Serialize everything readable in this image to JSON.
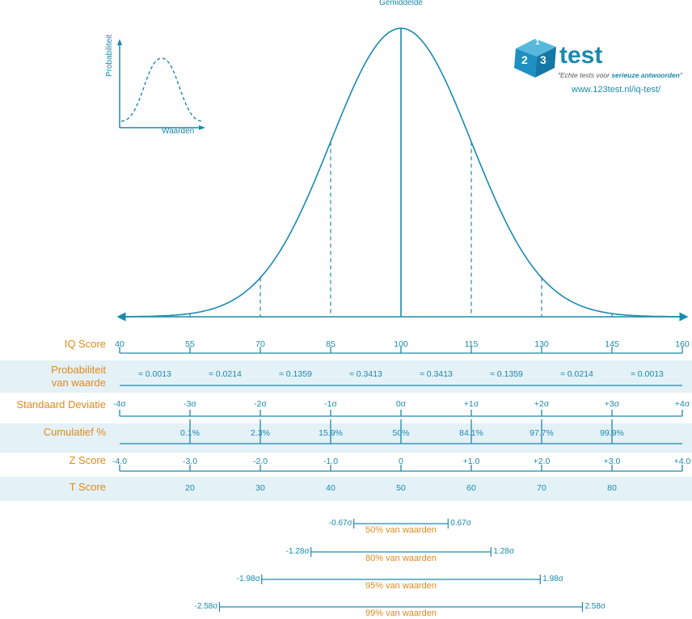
{
  "mean_label": "Gemiddelde",
  "inset": {
    "y_label": "Probabiliteit",
    "x_label": "Waarden"
  },
  "logo": {
    "text": "test",
    "digits": [
      "1",
      "2",
      "3"
    ],
    "tagline_prefix": "\"Echte tests voor ",
    "tagline_bold": "serieuze antwoorden",
    "tagline_suffix": "\"",
    "url": "www.123test.nl/iq-test/"
  },
  "rows": {
    "iq": {
      "label": "IQ Score",
      "values": [
        "40",
        "55",
        "70",
        "85",
        "100",
        "115",
        "130",
        "145",
        "160"
      ]
    },
    "prob": {
      "label_line1": "Probabiliteit",
      "label_line2": "van waarde",
      "values": [
        "≈ 0.0013",
        "≈ 0.0214",
        "≈ 0.1359",
        "≈ 0.3413",
        "≈ 0.3413",
        "≈ 0.1359",
        "≈ 0.0214",
        "≈ 0.0013"
      ]
    },
    "sd": {
      "label": "Standaard Deviatie",
      "values": [
        "-4σ",
        "-3σ",
        "-2σ",
        "-1σ",
        "0σ",
        "+1σ",
        "+2σ",
        "+3σ",
        "+4σ"
      ]
    },
    "cum": {
      "label": "Cumulatief %",
      "values": [
        "0.1%",
        "2.3%",
        "15.9%",
        "50%",
        "84.1%",
        "97.7%",
        "99.9%"
      ]
    },
    "z": {
      "label": "Z Score",
      "values": [
        "-4.0",
        "-3.0",
        "-2.0",
        "-1.0",
        "0",
        "+1.0",
        "+2.0",
        "+3.0",
        "+4.0"
      ]
    },
    "t": {
      "label": "T Score",
      "values": [
        "20",
        "30",
        "40",
        "50",
        "60",
        "70",
        "80"
      ]
    }
  },
  "ranges": [
    {
      "sigma": 0.67,
      "left": "-0.67σ",
      "right": "0.67σ",
      "caption": "50% van waarden"
    },
    {
      "sigma": 1.28,
      "left": "-1.28σ",
      "right": "1.28σ",
      "caption": "80% van waarden"
    },
    {
      "sigma": 1.98,
      "left": "-1.98σ",
      "right": "1.98σ",
      "caption": "95% van waarden"
    },
    {
      "sigma": 2.58,
      "left": "-2.58σ",
      "right": "2.58σ",
      "caption": "99% van waarden"
    }
  ],
  "chart_data": {
    "type": "line",
    "x_unit": "sigma",
    "x_range": [
      -4,
      4
    ],
    "curve": "normal distribution",
    "dashed_markers_at_sigma": [
      -3,
      -2,
      -1,
      1,
      2,
      3
    ],
    "solid_marker_at_sigma": 0
  },
  "colors": {
    "accent": "#1a8aae",
    "label": "#e08a1e",
    "band": "#e4f1f7"
  }
}
